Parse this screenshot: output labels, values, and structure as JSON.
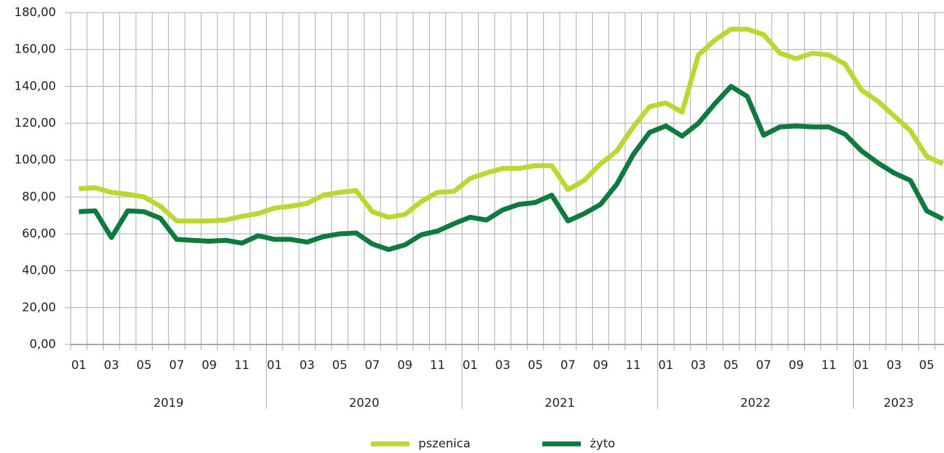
{
  "chart_data": {
    "type": "line",
    "categories": [
      "01",
      null,
      "03",
      null,
      "05",
      null,
      "07",
      null,
      "09",
      null,
      "11",
      null,
      "01",
      null,
      "03",
      null,
      "05",
      null,
      "07",
      null,
      "09",
      null,
      "11",
      null,
      "01",
      null,
      "03",
      null,
      "05",
      null,
      "07",
      null,
      "09",
      null,
      "11",
      null,
      "01",
      null,
      "03",
      null,
      "05",
      null,
      "07",
      null,
      "09",
      null,
      "11",
      null,
      "01",
      null,
      "03",
      null,
      "05",
      null
    ],
    "years": [
      "2019",
      "2020",
      "2021",
      "2022",
      "2023"
    ],
    "series": [
      {
        "name": "pszenica",
        "color": "#bdd631",
        "values": [
          84.5,
          85,
          82.5,
          81.5,
          80,
          75,
          67,
          67,
          67,
          67.5,
          69.5,
          71,
          74,
          75,
          76.5,
          81,
          82.5,
          83.5,
          72,
          69,
          70.5,
          77.5,
          82.5,
          83,
          90,
          93,
          95.5,
          95.5,
          97,
          97,
          84,
          89,
          98,
          105,
          118,
          129,
          131,
          126,
          157,
          165,
          171,
          171,
          168,
          158,
          155,
          158,
          157,
          152,
          138,
          132,
          124,
          116,
          102,
          98
        ]
      },
      {
        "name": "żyto",
        "color": "#0e7a3d",
        "values": [
          72,
          72.5,
          58,
          72.5,
          72,
          68.5,
          57,
          56.5,
          56,
          56.5,
          55,
          59,
          57,
          57,
          55.5,
          58.5,
          60,
          60.5,
          54.5,
          51.5,
          54,
          59.5,
          61.5,
          65.5,
          69,
          67.5,
          73,
          76,
          77,
          81,
          67,
          71,
          76,
          87,
          103,
          115,
          118.5,
          113,
          120,
          130.5,
          140,
          134.5,
          113.5,
          118,
          118.5,
          118,
          118,
          114,
          105,
          98.5,
          93,
          89,
          72.5,
          68
        ]
      }
    ],
    "ylim": [
      0,
      180
    ],
    "yticks": [
      {
        "value": 0,
        "label": "0,00"
      },
      {
        "value": 20,
        "label": "20,00"
      },
      {
        "value": 40,
        "label": "40,00"
      },
      {
        "value": 60,
        "label": "60,00"
      },
      {
        "value": 80,
        "label": "80,00"
      },
      {
        "value": 100,
        "label": "100,00"
      },
      {
        "value": 120,
        "label": "120,00"
      },
      {
        "value": 140,
        "label": "140,00"
      },
      {
        "value": 160,
        "label": "160,00"
      },
      {
        "value": 180,
        "label": "180,00"
      }
    ],
    "grid": true,
    "legend": "bottom"
  }
}
